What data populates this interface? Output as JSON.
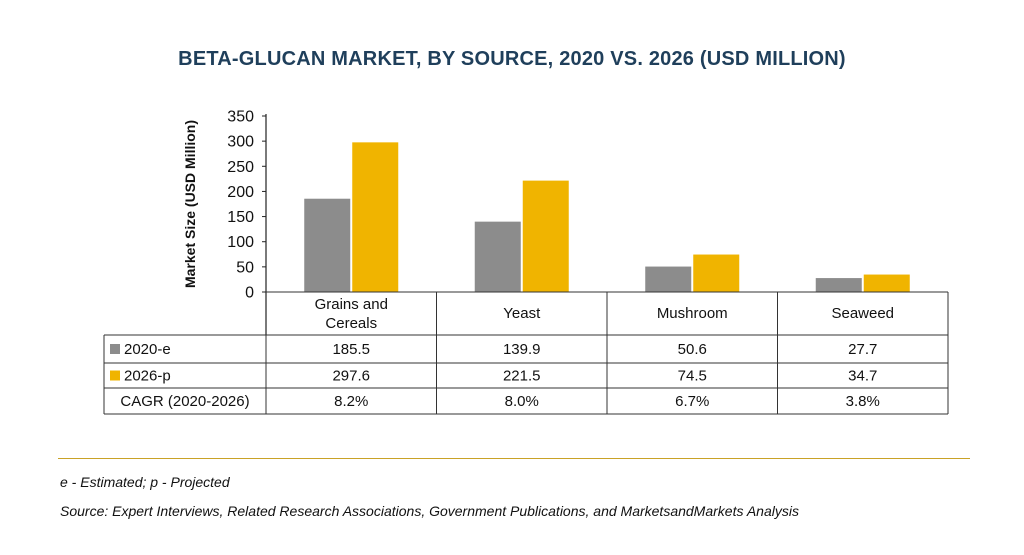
{
  "chart_data": {
    "type": "bar",
    "title": "BETA-GLUCAN MARKET, BY SOURCE, 2020 VS. 2026 (USD MILLION)",
    "ylabel": "Market Size (USD Million)",
    "xlabel": "",
    "ylim": [
      0,
      350
    ],
    "yticks": [
      0,
      50,
      100,
      150,
      200,
      250,
      300,
      350
    ],
    "grid": false,
    "legend": "table-row-labels",
    "categories": [
      [
        "Grains and",
        "Cereals"
      ],
      [
        "Yeast"
      ],
      [
        "Mushroom"
      ],
      [
        "Seaweed"
      ]
    ],
    "series": [
      {
        "name": "2020-e",
        "color": "#8c8c8c",
        "values": [
          185.5,
          139.9,
          50.6,
          27.7
        ],
        "labels": [
          "185.5",
          "139.9",
          "50.6",
          "27.7"
        ]
      },
      {
        "name": "2026-p",
        "color": "#f0b400",
        "values": [
          297.6,
          221.5,
          74.5,
          34.7
        ],
        "labels": [
          "297.6",
          "221.5",
          "74.5",
          "34.7"
        ]
      }
    ],
    "cagr": {
      "label": "CAGR (2020-2026)",
      "values": [
        "8.2%",
        "8.0%",
        "6.7%",
        "3.8%"
      ]
    }
  },
  "footnotes": {
    "estimated": "e - Estimated; p - Projected",
    "source": "Source: Expert Interviews, Related Research Associations, Government Publications, and MarketsandMarkets Analysis"
  }
}
